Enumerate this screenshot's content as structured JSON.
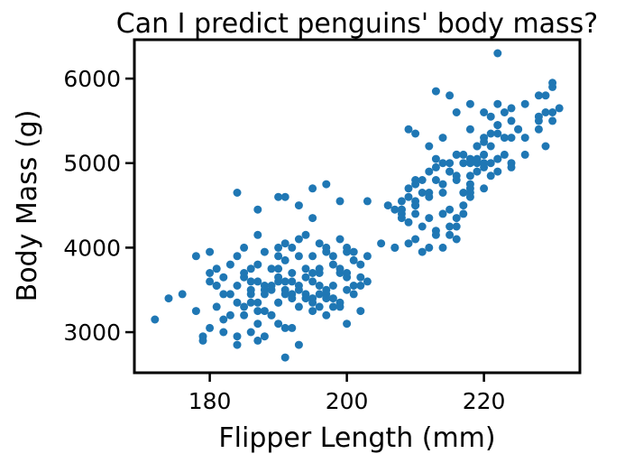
{
  "chart_data": {
    "type": "scatter",
    "title": "Can I predict penguins' body mass?",
    "xlabel": "Flipper Length (mm)",
    "ylabel": "Body Mass (g)",
    "xlim": [
      169,
      234
    ],
    "ylim": [
      2520,
      6460
    ],
    "xticks": [
      180,
      200,
      220
    ],
    "yticks": [
      3000,
      4000,
      5000,
      6000
    ],
    "xtick_labels": [
      "180",
      "200",
      "220"
    ],
    "ytick_labels": [
      "3000",
      "4000",
      "5000",
      "6000"
    ],
    "grid": false,
    "marker_color": "#1f77b4",
    "x": [
      172,
      174,
      176,
      178,
      178,
      179,
      180,
      180,
      181,
      181,
      182,
      182,
      183,
      184,
      184,
      185,
      185,
      186,
      187,
      187,
      188,
      189,
      190,
      190,
      191,
      191,
      192,
      193,
      194,
      195,
      195,
      196,
      197,
      198,
      199,
      200,
      201,
      202,
      203,
      180,
      181,
      182,
      183,
      185,
      185,
      186,
      186,
      187,
      187,
      188,
      188,
      189,
      189,
      190,
      190,
      191,
      191,
      192,
      192,
      193,
      193,
      194,
      194,
      195,
      195,
      196,
      196,
      197,
      197,
      198,
      198,
      199,
      200,
      200,
      201,
      202,
      184,
      185,
      186,
      187,
      188,
      189,
      190,
      190,
      191,
      192,
      193,
      194,
      195,
      196,
      197,
      198,
      199,
      200,
      201,
      203,
      181,
      183,
      184,
      186,
      187,
      188,
      189,
      190,
      191,
      192,
      193,
      194,
      195,
      196,
      197,
      198,
      199,
      200,
      201,
      202,
      179,
      180,
      182,
      184,
      186,
      187,
      188,
      190,
      191,
      192,
      193,
      195,
      196,
      197,
      199,
      200,
      202,
      184,
      187,
      190,
      191,
      193,
      195,
      197,
      199,
      203,
      205,
      206,
      207,
      208,
      208,
      209,
      209,
      210,
      210,
      210,
      211,
      211,
      212,
      212,
      213,
      213,
      214,
      214,
      215,
      215,
      216,
      216,
      217,
      217,
      218,
      218,
      219,
      219,
      220,
      220,
      221,
      221,
      222,
      222,
      223,
      224,
      225,
      226,
      228,
      208,
      209,
      210,
      211,
      212,
      213,
      214,
      215,
      215,
      216,
      216,
      217,
      217,
      218,
      218,
      219,
      219,
      220,
      220,
      221,
      222,
      223,
      224,
      225,
      228,
      229,
      229,
      230,
      230,
      231,
      207,
      209,
      210,
      211,
      212,
      213,
      214,
      215,
      216,
      217,
      218,
      219,
      220,
      221,
      222,
      223,
      224,
      210,
      213,
      215,
      216,
      218,
      220,
      222,
      224,
      226,
      228,
      230,
      207,
      208,
      210,
      212,
      214,
      216,
      218,
      220,
      222,
      224,
      226,
      229,
      208,
      210,
      213,
      215,
      218,
      220,
      222,
      228,
      230,
      209,
      212,
      214,
      216,
      218,
      221,
      222
    ],
    "y": [
      3150,
      3400,
      3450,
      3900,
      3250,
      2950,
      3700,
      3600,
      3550,
      3300,
      3150,
      3450,
      3200,
      3550,
      2850,
      3650,
      3200,
      3450,
      3600,
      3100,
      3500,
      3200,
      3600,
      3350,
      3500,
      3050,
      3400,
      3300,
      3450,
      3600,
      3400,
      3700,
      3500,
      3400,
      3700,
      3650,
      3550,
      3800,
      3600,
      3950,
      3750,
      3650,
      3800,
      3700,
      3300,
      3600,
      3350,
      3800,
      3250,
      3550,
      3450,
      3500,
      3200,
      3750,
      3650,
      3850,
      3450,
      3700,
      3600,
      3900,
      3550,
      3750,
      3650,
      3900,
      3700,
      3750,
      3550,
      3950,
      3450,
      3800,
      3550,
      3750,
      3950,
      3700,
      3850,
      3650,
      3900,
      4000,
      3750,
      4150,
      3950,
      3750,
      4000,
      3900,
      4050,
      4000,
      4100,
      4150,
      4350,
      4050,
      4000,
      3900,
      4100,
      4000,
      3950,
      3900,
      3550,
      3450,
      3350,
      3500,
      3350,
      3250,
      3550,
      3350,
      3600,
      3450,
      3500,
      3400,
      3350,
      3450,
      3400,
      3300,
      3350,
      3500,
      3450,
      3550,
      2900,
      3050,
      3000,
      2950,
      3000,
      2900,
      2950,
      3100,
      2700,
      3050,
      2850,
      3250,
      3300,
      3200,
      3300,
      3100,
      3250,
      4650,
      4450,
      4600,
      4600,
      4500,
      4700,
      4750,
      4550,
      4550,
      4050,
      4500,
      4000,
      4450,
      4550,
      4600,
      4700,
      4500,
      4750,
      4550,
      4800,
      4650,
      4650,
      4900,
      4800,
      5050,
      4750,
      5000,
      4900,
      5000,
      4850,
      5100,
      5000,
      5100,
      4700,
      5050,
      5200,
      4900,
      5300,
      5100,
      5200,
      5000,
      5350,
      5050,
      5300,
      5300,
      5400,
      5300,
      5550,
      4400,
      4300,
      4400,
      4250,
      4350,
      4200,
      4400,
      4450,
      4250,
      4350,
      4100,
      4650,
      4400,
      4750,
      4650,
      5200,
      5000,
      5250,
      5000,
      5550,
      5450,
      5600,
      5500,
      5400,
      5400,
      5600,
      5800,
      5600,
      5900,
      5650,
      4000,
      4050,
      4100,
      3950,
      4000,
      4150,
      4000,
      4150,
      4250,
      4500,
      4600,
      5050,
      4700,
      4850,
      4900,
      5100,
      4950,
      5350,
      5850,
      5800,
      5600,
      5700,
      5600,
      5700,
      5650,
      5700,
      5800,
      5950,
      4450,
      4350,
      4500,
      4600,
      4650,
      4800,
      4850,
      4950,
      5050,
      5000,
      5100,
      5200,
      4450,
      4800,
      4950,
      4900,
      5000,
      5100,
      5450,
      5500,
      5500,
      5400,
      5200,
      5300,
      5100,
      5400,
      5350,
      6300
    ]
  }
}
